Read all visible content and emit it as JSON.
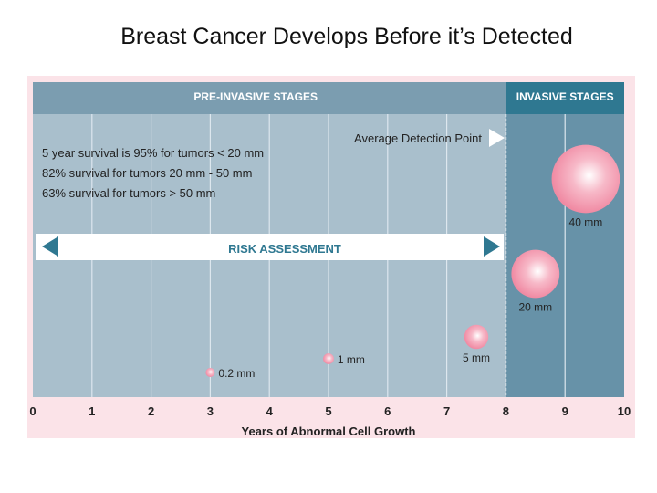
{
  "slide": {
    "title": "Breast Cancer Develops Before it’s Detected"
  },
  "chart_data": {
    "type": "scatter",
    "title": "",
    "xlabel": "Years of Abnormal Cell Growth",
    "xlim": [
      0,
      10
    ],
    "x_ticks": [
      "0",
      "1",
      "2",
      "3",
      "4",
      "5",
      "6",
      "7",
      "8",
      "9",
      "10"
    ],
    "grid": true,
    "bands": [
      {
        "label": "PRE-INVASIVE STAGES",
        "from": 0,
        "to": 8,
        "header_color": "#7b9db0",
        "fill": "#a9bfcc"
      },
      {
        "label": "INVASIVE STAGES",
        "from": 8,
        "to": 10,
        "header_color": "#2f7891",
        "fill": "#6792a8"
      }
    ],
    "points": [
      {
        "x": 3.0,
        "size_mm": 0.2,
        "label": "0.2 mm"
      },
      {
        "x": 5.0,
        "size_mm": 1,
        "label": "1 mm"
      },
      {
        "x": 7.5,
        "size_mm": 5,
        "label": "5 mm"
      },
      {
        "x": 8.5,
        "size_mm": 20,
        "label": "20 mm"
      },
      {
        "x": 9.35,
        "size_mm": 40,
        "label": "40 mm"
      }
    ],
    "annotations": {
      "survival": [
        "5 year survival is 95% for tumors < 20 mm",
        "82% survival for tumors 20 mm - 50 mm",
        "63% survival for tumors  > 50 mm"
      ],
      "detection_point": {
        "x": 8,
        "label": "Average Detection Point"
      },
      "risk_bar": {
        "label": "RISK ASSESSMENT",
        "color": "#2f7891"
      }
    },
    "bubble_color": "#f08aa3"
  }
}
